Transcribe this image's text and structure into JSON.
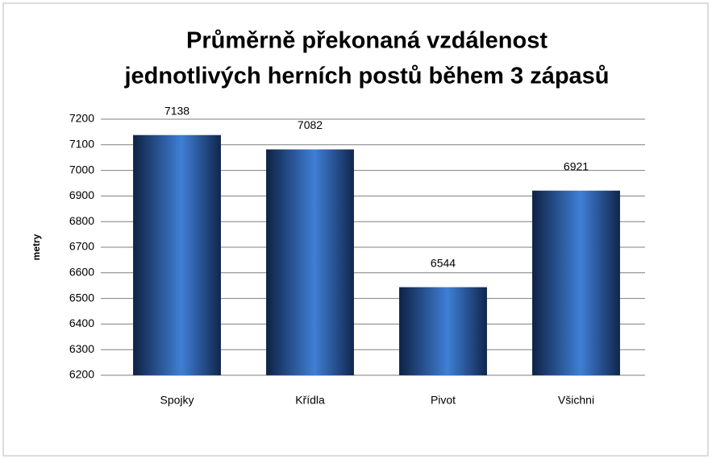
{
  "chart_data": {
    "type": "bar",
    "title": [
      "Průměrně překonaná vzdálenost",
      "jednotlivých herních postů během 3 zápasů"
    ],
    "y_label": "metry",
    "categories": [
      "Spojky",
      "Křídla",
      "Pivot",
      "Všichni"
    ],
    "values": [
      7138,
      7082,
      6544,
      6921
    ],
    "color": "#3f7fd6",
    "ylim": [
      6200,
      7200
    ],
    "yticks": [
      6200,
      6300,
      6400,
      6500,
      6600,
      6700,
      6800,
      6900,
      7000,
      7100,
      7200
    ],
    "grid": true
  }
}
